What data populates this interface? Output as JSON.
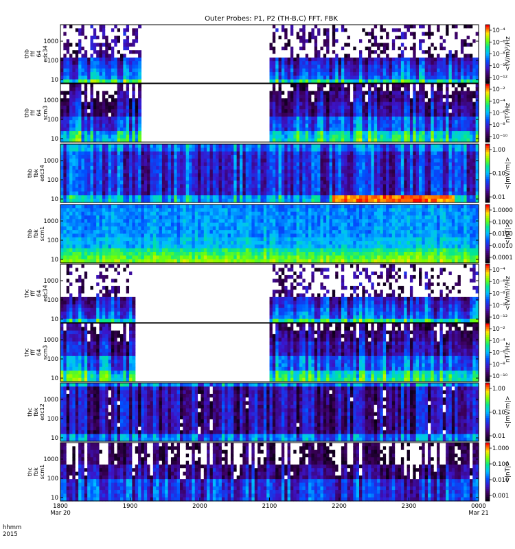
{
  "title": "Outer Probes: P1, P2 (TH-B,C) FFT, FBK",
  "time_axis": {
    "label_line1": "hhmm",
    "label_line2": "2015",
    "ticks": [
      {
        "time": "1800",
        "date": "Mar 20"
      },
      {
        "time": "1900",
        "date": ""
      },
      {
        "time": "2000",
        "date": ""
      },
      {
        "time": "2100",
        "date": ""
      },
      {
        "time": "2200",
        "date": ""
      },
      {
        "time": "2300",
        "date": ""
      },
      {
        "time": "0000",
        "date": "Mar 21"
      }
    ]
  },
  "chart_data": [
    {
      "type": "heatmap",
      "panel_label": [
        "thb",
        "fff",
        "64",
        "edc34"
      ],
      "y_ticks": [
        "1000",
        "100",
        "10"
      ],
      "y_scale": "log",
      "x_range": [
        "1800",
        "0000"
      ],
      "data_gap": [
        "1910",
        "2100"
      ],
      "colorbar_label": "<(V/m)²/Hz",
      "colorbar_ticks": [
        "10⁻⁴",
        "10⁻⁶",
        "10⁻⁸",
        "10⁻¹⁰",
        "10⁻¹²"
      ],
      "colorscale_min_label": "",
      "style": "sparse"
    },
    {
      "type": "heatmap",
      "panel_label": [
        "thb",
        "fff",
        "64",
        "scm3"
      ],
      "y_ticks": [
        "1000",
        "100",
        "10"
      ],
      "y_scale": "log",
      "x_range": [
        "1800",
        "0000"
      ],
      "data_gap": [
        "1910",
        "2100"
      ],
      "colorbar_label": "nT²/Hz",
      "colorbar_ticks": [
        "10⁻²",
        "10⁻⁴",
        "10⁻⁶",
        "10⁻⁸",
        "10⁻¹⁰"
      ],
      "style": "banded"
    },
    {
      "type": "heatmap",
      "panel_label": [
        "thb",
        "fbk",
        "edc34"
      ],
      "y_ticks": [
        "1000",
        "100",
        "10"
      ],
      "y_scale": "log",
      "x_range": [
        "1800",
        "0000"
      ],
      "colorbar_label": "<|mV/m|>",
      "colorbar_ticks": [
        "1.00",
        "0.10",
        "0.01"
      ],
      "style": "stripes_hot"
    },
    {
      "type": "heatmap",
      "panel_label": [
        "thb",
        "fbk",
        "scm1"
      ],
      "y_ticks": [
        "1000",
        "100",
        "10"
      ],
      "y_scale": "log",
      "x_range": [
        "1800",
        "0000"
      ],
      "colorbar_label": "<|nT|>",
      "colorbar_ticks": [
        "1.0000",
        "0.1000",
        "0.0100",
        "0.0010",
        "0.0001"
      ],
      "style": "smooth"
    },
    {
      "type": "heatmap",
      "panel_label": [
        "thc",
        "fff",
        "64",
        "edc34"
      ],
      "y_ticks": [
        "1000",
        "100",
        "10"
      ],
      "y_scale": "log",
      "x_range": [
        "1800",
        "0000"
      ],
      "data_gap": [
        "1905",
        "2100"
      ],
      "colorbar_label": "<(V/m)²/Hz",
      "colorbar_ticks": [
        "10⁻⁴",
        "10⁻⁶",
        "10⁻⁸",
        "10⁻¹⁰",
        "10⁻¹²"
      ],
      "style": "sparse"
    },
    {
      "type": "heatmap",
      "panel_label": [
        "thc",
        "fff",
        "64",
        "scm3"
      ],
      "y_ticks": [
        "1000",
        "100",
        "10"
      ],
      "y_scale": "log",
      "x_range": [
        "1800",
        "0000"
      ],
      "data_gap": [
        "1905",
        "2100"
      ],
      "colorbar_label": "nT²/Hz",
      "colorbar_ticks": [
        "10⁻²",
        "10⁻⁴",
        "10⁻⁶",
        "10⁻⁸",
        "10⁻¹⁰"
      ],
      "style": "banded"
    },
    {
      "type": "heatmap",
      "panel_label": [
        "thc",
        "fbk",
        "edc12"
      ],
      "y_ticks": [
        "1000",
        "100",
        "10"
      ],
      "y_scale": "log",
      "x_range": [
        "1800",
        "0000"
      ],
      "colorbar_label": "<|mV/m|>",
      "colorbar_ticks": [
        "1.00",
        "0.10",
        "0.01"
      ],
      "style": "stripes_dark"
    },
    {
      "type": "heatmap",
      "panel_label": [
        "thc",
        "fbk",
        "scm1"
      ],
      "y_ticks": [
        "1000",
        "100",
        "10"
      ],
      "y_scale": "log",
      "x_range": [
        "1800",
        "0000"
      ],
      "colorbar_label": "<|nT|>",
      "colorbar_ticks": [
        "1.000",
        "0.100",
        "0.010",
        "0.001"
      ],
      "style": "dark_top"
    }
  ]
}
